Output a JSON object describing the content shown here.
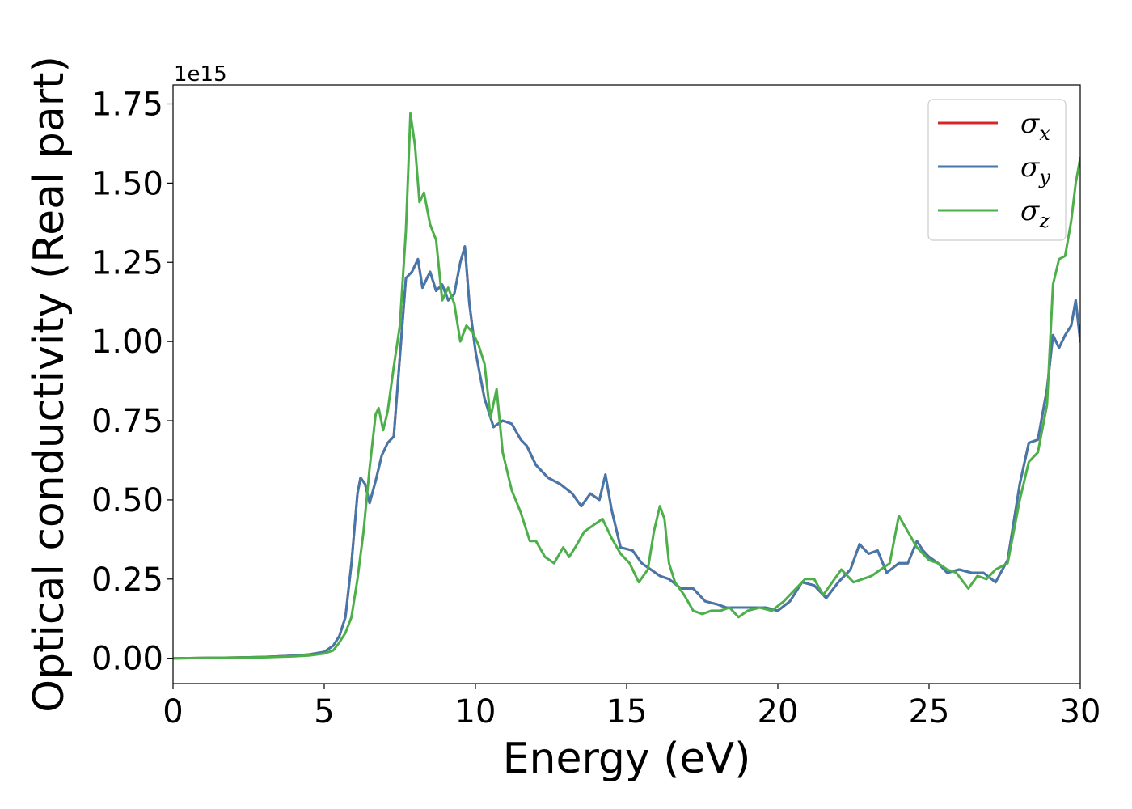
{
  "chart_data": {
    "type": "line",
    "xlabel": "Energy (eV)",
    "ylabel": "Optical conductivity (Real part)",
    "y_offset_label": "1e15",
    "xlim": [
      0,
      30
    ],
    "ylim": [
      -0.08,
      1.81
    ],
    "x_ticks": [
      0,
      5,
      10,
      15,
      20,
      25,
      30
    ],
    "x_tick_labels": [
      "0",
      "5",
      "10",
      "15",
      "20",
      "25",
      "30"
    ],
    "y_ticks": [
      0,
      0.25,
      0.5,
      0.75,
      1.0,
      1.25,
      1.5,
      1.75
    ],
    "y_tick_labels": [
      "0.00",
      "0.25",
      "0.50",
      "0.75",
      "1.00",
      "1.25",
      "1.50",
      "1.75"
    ],
    "grid": false,
    "legend_position": "top-right",
    "series": [
      {
        "name": "σx",
        "symbol": "σ",
        "subscript": "x",
        "color": "#d62728",
        "x": [
          0,
          2,
          3,
          4,
          4.5,
          5,
          5.3,
          5.5,
          5.7,
          5.9,
          6.1,
          6.2,
          6.35,
          6.5,
          6.7,
          6.9,
          7.1,
          7.3,
          7.5,
          7.7,
          7.9,
          8.1,
          8.25,
          8.5,
          8.7,
          8.9,
          9.1,
          9.3,
          9.5,
          9.65,
          9.8,
          10,
          10.3,
          10.6,
          10.9,
          11.2,
          11.5,
          11.7,
          12,
          12.4,
          12.8,
          13.2,
          13.5,
          13.8,
          14.1,
          14.3,
          14.5,
          14.8,
          15.2,
          15.5,
          15.8,
          16.1,
          16.4,
          16.8,
          17.2,
          17.6,
          18,
          18.3,
          18.7,
          19.2,
          19.6,
          20,
          20.4,
          20.8,
          21.2,
          21.6,
          22,
          22.4,
          22.7,
          23,
          23.3,
          23.6,
          24,
          24.3,
          24.6,
          24.8,
          25,
          25.3,
          25.6,
          26,
          26.4,
          26.8,
          27.2,
          27.6,
          28,
          28.3,
          28.6,
          28.9,
          29.1,
          29.3,
          29.5,
          29.7,
          29.85,
          30
        ],
        "y": [
          0,
          0.002,
          0.004,
          0.008,
          0.012,
          0.02,
          0.04,
          0.07,
          0.13,
          0.3,
          0.52,
          0.57,
          0.55,
          0.49,
          0.56,
          0.64,
          0.68,
          0.7,
          0.95,
          1.2,
          1.22,
          1.26,
          1.17,
          1.22,
          1.16,
          1.18,
          1.13,
          1.15,
          1.25,
          1.3,
          1.12,
          0.97,
          0.82,
          0.73,
          0.75,
          0.74,
          0.69,
          0.67,
          0.61,
          0.57,
          0.55,
          0.52,
          0.48,
          0.52,
          0.5,
          0.58,
          0.47,
          0.35,
          0.34,
          0.3,
          0.28,
          0.26,
          0.25,
          0.22,
          0.22,
          0.18,
          0.17,
          0.16,
          0.16,
          0.16,
          0.16,
          0.15,
          0.18,
          0.24,
          0.23,
          0.19,
          0.24,
          0.28,
          0.36,
          0.33,
          0.34,
          0.27,
          0.3,
          0.3,
          0.37,
          0.34,
          0.32,
          0.3,
          0.27,
          0.28,
          0.27,
          0.27,
          0.24,
          0.31,
          0.55,
          0.68,
          0.69,
          0.85,
          1.02,
          0.98,
          1.02,
          1.05,
          1.13,
          1.0
        ]
      },
      {
        "name": "σy",
        "symbol": "σ",
        "subscript": "y",
        "color": "#4477aa",
        "x": [
          0,
          2,
          3,
          4,
          4.5,
          5,
          5.3,
          5.5,
          5.7,
          5.9,
          6.1,
          6.2,
          6.35,
          6.5,
          6.7,
          6.9,
          7.1,
          7.3,
          7.5,
          7.7,
          7.9,
          8.1,
          8.25,
          8.5,
          8.7,
          8.9,
          9.1,
          9.3,
          9.5,
          9.65,
          9.8,
          10,
          10.3,
          10.6,
          10.9,
          11.2,
          11.5,
          11.7,
          12,
          12.4,
          12.8,
          13.2,
          13.5,
          13.8,
          14.1,
          14.3,
          14.5,
          14.8,
          15.2,
          15.5,
          15.8,
          16.1,
          16.4,
          16.8,
          17.2,
          17.6,
          18,
          18.3,
          18.7,
          19.2,
          19.6,
          20,
          20.4,
          20.8,
          21.2,
          21.6,
          22,
          22.4,
          22.7,
          23,
          23.3,
          23.6,
          24,
          24.3,
          24.6,
          24.8,
          25,
          25.3,
          25.6,
          26,
          26.4,
          26.8,
          27.2,
          27.6,
          28,
          28.3,
          28.6,
          28.9,
          29.1,
          29.3,
          29.5,
          29.7,
          29.85,
          30
        ],
        "y": [
          0,
          0.002,
          0.004,
          0.008,
          0.012,
          0.02,
          0.04,
          0.07,
          0.13,
          0.3,
          0.52,
          0.57,
          0.55,
          0.49,
          0.56,
          0.64,
          0.68,
          0.7,
          0.95,
          1.2,
          1.22,
          1.26,
          1.17,
          1.22,
          1.16,
          1.18,
          1.13,
          1.15,
          1.25,
          1.3,
          1.12,
          0.97,
          0.82,
          0.73,
          0.75,
          0.74,
          0.69,
          0.67,
          0.61,
          0.57,
          0.55,
          0.52,
          0.48,
          0.52,
          0.5,
          0.58,
          0.47,
          0.35,
          0.34,
          0.3,
          0.28,
          0.26,
          0.25,
          0.22,
          0.22,
          0.18,
          0.17,
          0.16,
          0.16,
          0.16,
          0.16,
          0.15,
          0.18,
          0.24,
          0.23,
          0.19,
          0.24,
          0.28,
          0.36,
          0.33,
          0.34,
          0.27,
          0.3,
          0.3,
          0.37,
          0.34,
          0.32,
          0.3,
          0.27,
          0.28,
          0.27,
          0.27,
          0.24,
          0.31,
          0.55,
          0.68,
          0.69,
          0.85,
          1.02,
          0.98,
          1.02,
          1.05,
          1.13,
          1.0
        ]
      },
      {
        "name": "σz",
        "symbol": "σ",
        "subscript": "z",
        "color": "#4daf4a",
        "x": [
          0,
          2,
          3,
          4,
          4.5,
          5,
          5.3,
          5.5,
          5.7,
          5.9,
          6.1,
          6.3,
          6.5,
          6.7,
          6.8,
          6.95,
          7.1,
          7.3,
          7.5,
          7.7,
          7.85,
          8,
          8.15,
          8.3,
          8.5,
          8.7,
          8.9,
          9.1,
          9.3,
          9.5,
          9.7,
          9.9,
          10.1,
          10.3,
          10.5,
          10.7,
          10.9,
          11.2,
          11.5,
          11.8,
          12,
          12.3,
          12.6,
          12.9,
          13.1,
          13.3,
          13.6,
          13.9,
          14.2,
          14.5,
          14.8,
          15.1,
          15.4,
          15.7,
          15.9,
          16.1,
          16.25,
          16.4,
          16.6,
          16.9,
          17.2,
          17.5,
          17.8,
          18.1,
          18.4,
          18.7,
          19,
          19.4,
          19.8,
          20.2,
          20.6,
          20.9,
          21.2,
          21.5,
          21.8,
          22.1,
          22.5,
          22.8,
          23.1,
          23.4,
          23.7,
          24,
          24.3,
          24.6,
          25,
          25.3,
          25.6,
          25.9,
          26.3,
          26.6,
          26.9,
          27.2,
          27.6,
          28,
          28.3,
          28.6,
          28.9,
          29.1,
          29.3,
          29.5,
          29.7,
          29.85,
          30
        ],
        "y": [
          0,
          0.002,
          0.003,
          0.006,
          0.009,
          0.015,
          0.025,
          0.05,
          0.08,
          0.13,
          0.25,
          0.4,
          0.6,
          0.77,
          0.79,
          0.72,
          0.78,
          0.92,
          1.05,
          1.35,
          1.72,
          1.62,
          1.44,
          1.47,
          1.37,
          1.32,
          1.13,
          1.17,
          1.12,
          1.0,
          1.05,
          1.03,
          0.99,
          0.93,
          0.76,
          0.85,
          0.65,
          0.53,
          0.46,
          0.37,
          0.37,
          0.32,
          0.3,
          0.35,
          0.32,
          0.35,
          0.4,
          0.42,
          0.44,
          0.38,
          0.33,
          0.3,
          0.24,
          0.28,
          0.4,
          0.48,
          0.44,
          0.3,
          0.24,
          0.2,
          0.15,
          0.14,
          0.15,
          0.15,
          0.16,
          0.13,
          0.15,
          0.16,
          0.15,
          0.18,
          0.22,
          0.25,
          0.25,
          0.2,
          0.24,
          0.28,
          0.24,
          0.25,
          0.26,
          0.28,
          0.3,
          0.45,
          0.4,
          0.35,
          0.31,
          0.3,
          0.28,
          0.27,
          0.22,
          0.26,
          0.25,
          0.28,
          0.3,
          0.5,
          0.62,
          0.65,
          0.8,
          1.18,
          1.26,
          1.27,
          1.38,
          1.5,
          1.58
        ]
      }
    ]
  }
}
